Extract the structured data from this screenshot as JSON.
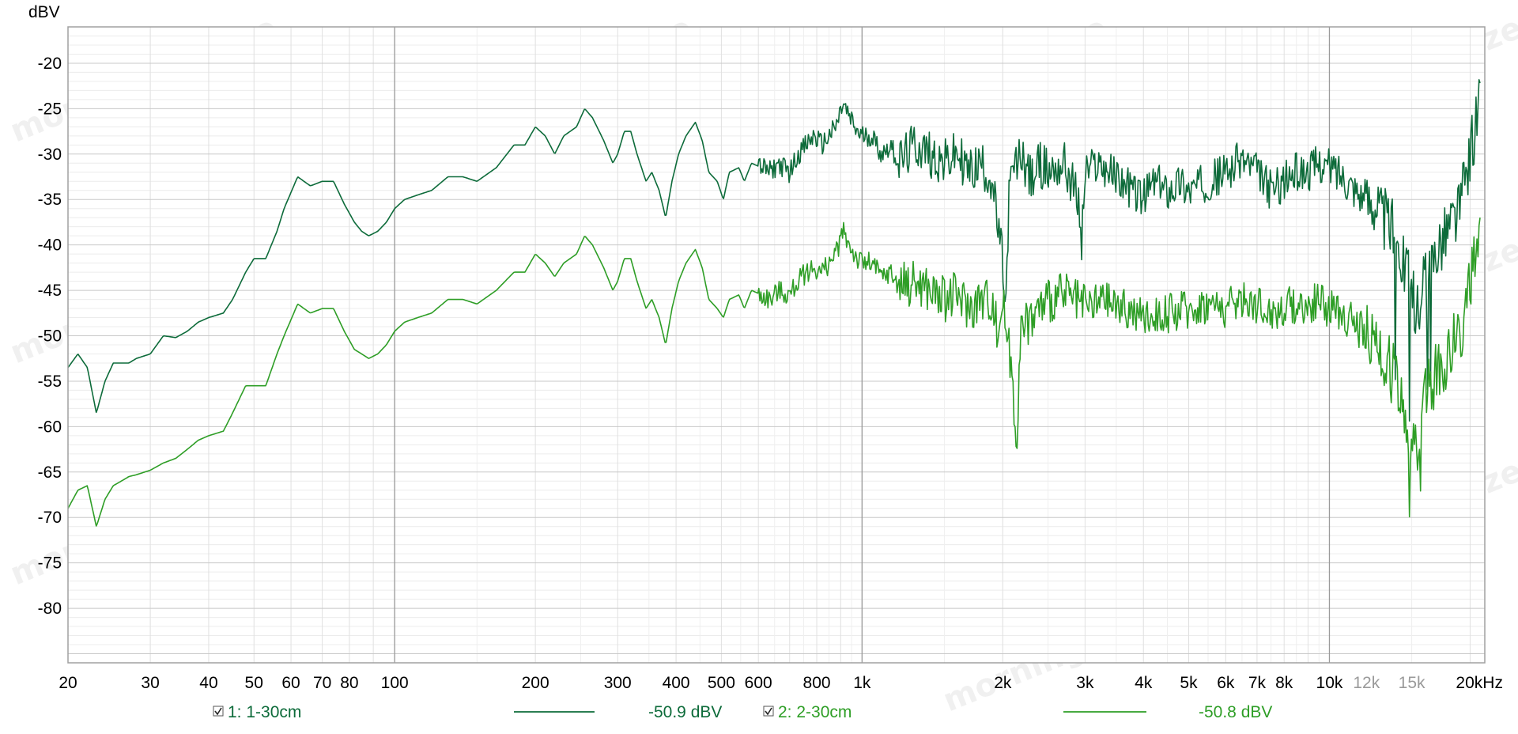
{
  "chart_data": {
    "type": "line",
    "ylabel": "dBV",
    "x_scale": "log",
    "xlim": [
      20,
      21500
    ],
    "ylim": [
      -86,
      -16
    ],
    "grid": true,
    "x_ticks": [
      {
        "value": 20,
        "label": "20"
      },
      {
        "value": 30,
        "label": "30"
      },
      {
        "value": 40,
        "label": "40"
      },
      {
        "value": 50,
        "label": "50"
      },
      {
        "value": 60,
        "label": "60"
      },
      {
        "value": 70,
        "label": "70"
      },
      {
        "value": 80,
        "label": "80"
      },
      {
        "value": 100,
        "label": "100"
      },
      {
        "value": 200,
        "label": "200"
      },
      {
        "value": 300,
        "label": "300"
      },
      {
        "value": 400,
        "label": "400"
      },
      {
        "value": 500,
        "label": "500"
      },
      {
        "value": 600,
        "label": "600"
      },
      {
        "value": 800,
        "label": "800"
      },
      {
        "value": 1000,
        "label": "1k"
      },
      {
        "value": 2000,
        "label": "2k"
      },
      {
        "value": 3000,
        "label": "3k"
      },
      {
        "value": 4000,
        "label": "4k"
      },
      {
        "value": 5000,
        "label": "5k"
      },
      {
        "value": 6000,
        "label": "6k"
      },
      {
        "value": 7000,
        "label": "7k"
      },
      {
        "value": 8000,
        "label": "8k"
      },
      {
        "value": 10000,
        "label": "10k"
      },
      {
        "value": 12000,
        "label": "12k",
        "muted": true
      },
      {
        "value": 15000,
        "label": "15k",
        "muted": true
      },
      {
        "value": 20000,
        "label": "20kHz"
      }
    ],
    "y_ticks": [
      -20,
      -25,
      -30,
      -35,
      -40,
      -45,
      -50,
      -55,
      -60,
      -65,
      -70,
      -75,
      -80
    ],
    "series": [
      {
        "name": "1: 1-30cm",
        "value": "-50.9 dBV",
        "color": "#0d6b3a",
        "checked": true,
        "points": [
          [
            20,
            -53.5
          ],
          [
            21,
            -52
          ],
          [
            22,
            -53.5
          ],
          [
            23,
            -58.5
          ],
          [
            24,
            -55
          ],
          [
            25,
            -53
          ],
          [
            26,
            -53
          ],
          [
            27,
            -53
          ],
          [
            28,
            -52.5
          ],
          [
            30,
            -52
          ],
          [
            32,
            -50
          ],
          [
            34,
            -50.2
          ],
          [
            36,
            -49.5
          ],
          [
            38,
            -48.5
          ],
          [
            40,
            -48
          ],
          [
            43,
            -47.5
          ],
          [
            45,
            -46
          ],
          [
            48,
            -43
          ],
          [
            50,
            -41.5
          ],
          [
            53,
            -41.5
          ],
          [
            56,
            -38.5
          ],
          [
            58,
            -36
          ],
          [
            62,
            -32.5
          ],
          [
            66,
            -33.5
          ],
          [
            70,
            -33
          ],
          [
            74,
            -33
          ],
          [
            78,
            -35.5
          ],
          [
            82,
            -37.5
          ],
          [
            85,
            -38.5
          ],
          [
            88,
            -39
          ],
          [
            92,
            -38.5
          ],
          [
            96,
            -37.5
          ],
          [
            100,
            -36
          ],
          [
            105,
            -35
          ],
          [
            112,
            -34.5
          ],
          [
            120,
            -34
          ],
          [
            130,
            -32.5
          ],
          [
            140,
            -32.5
          ],
          [
            150,
            -33
          ],
          [
            165,
            -31.5
          ],
          [
            180,
            -29
          ],
          [
            190,
            -29
          ],
          [
            200,
            -27
          ],
          [
            210,
            -28
          ],
          [
            220,
            -30
          ],
          [
            230,
            -28
          ],
          [
            245,
            -27
          ],
          [
            255,
            -25
          ],
          [
            265,
            -26
          ],
          [
            280,
            -28.5
          ],
          [
            293,
            -31
          ],
          [
            300,
            -30
          ],
          [
            310,
            -27.5
          ],
          [
            320,
            -27.5
          ],
          [
            330,
            -30
          ],
          [
            345,
            -33
          ],
          [
            355,
            -32
          ],
          [
            368,
            -34
          ],
          [
            380,
            -37
          ],
          [
            392,
            -33
          ],
          [
            405,
            -30
          ],
          [
            420,
            -28
          ],
          [
            440,
            -26.5
          ],
          [
            455,
            -28.5
          ],
          [
            470,
            -32
          ],
          [
            490,
            -33
          ],
          [
            505,
            -35
          ],
          [
            520,
            -32
          ],
          [
            545,
            -31.5
          ],
          [
            560,
            -33
          ],
          [
            580,
            -31
          ],
          [
            610,
            -31.5
          ],
          [
            640,
            -32
          ],
          [
            660,
            -31
          ],
          [
            700,
            -32
          ],
          [
            730,
            -30
          ],
          [
            760,
            -29
          ],
          [
            790,
            -28
          ],
          [
            820,
            -29
          ],
          [
            850,
            -28
          ],
          [
            880,
            -27
          ],
          [
            910,
            -24.5
          ],
          [
            940,
            -26
          ],
          [
            975,
            -27.5
          ],
          [
            1000,
            -28
          ],
          [
            1050,
            -28
          ],
          [
            1100,
            -30
          ],
          [
            1150,
            -29
          ],
          [
            1200,
            -31
          ],
          [
            1300,
            -29
          ],
          [
            1400,
            -30
          ],
          [
            1500,
            -31
          ],
          [
            1600,
            -30
          ],
          [
            1700,
            -32
          ],
          [
            1800,
            -31
          ],
          [
            1900,
            -33
          ],
          [
            1950,
            -38
          ],
          [
            2000,
            -42
          ],
          [
            2030,
            -48
          ],
          [
            2060,
            -35
          ],
          [
            2100,
            -32
          ],
          [
            2200,
            -30
          ],
          [
            2300,
            -33
          ],
          [
            2400,
            -31
          ],
          [
            2500,
            -32
          ],
          [
            2700,
            -31
          ],
          [
            2800,
            -33
          ],
          [
            2900,
            -35
          ],
          [
            2950,
            -40
          ],
          [
            3000,
            -32
          ],
          [
            3200,
            -31
          ],
          [
            3400,
            -32
          ],
          [
            3600,
            -33
          ],
          [
            3800,
            -34
          ],
          [
            4000,
            -35
          ],
          [
            4200,
            -33
          ],
          [
            4500,
            -34
          ],
          [
            4800,
            -33
          ],
          [
            5000,
            -34
          ],
          [
            5500,
            -33
          ],
          [
            6000,
            -32
          ],
          [
            6500,
            -30.5
          ],
          [
            7000,
            -32
          ],
          [
            7500,
            -34
          ],
          [
            8000,
            -33
          ],
          [
            8500,
            -32
          ],
          [
            9000,
            -32
          ],
          [
            9500,
            -31
          ],
          [
            10000,
            -31.5
          ],
          [
            10500,
            -32
          ],
          [
            11000,
            -33
          ],
          [
            11500,
            -34
          ],
          [
            12000,
            -35
          ],
          [
            12500,
            -35
          ],
          [
            13000,
            -37
          ],
          [
            13500,
            -38
          ],
          [
            14000,
            -39
          ],
          [
            14500,
            -42
          ],
          [
            15000,
            -46
          ],
          [
            15500,
            -47
          ],
          [
            16000,
            -44
          ],
          [
            17000,
            -40
          ],
          [
            18000,
            -38
          ],
          [
            19000,
            -36
          ],
          [
            20000,
            -30
          ],
          [
            21000,
            -24
          ]
        ]
      },
      {
        "name": "2: 2-30cm",
        "value": "-50.8 dBV",
        "color": "#2e9e26",
        "checked": true,
        "points": [
          [
            20,
            -69
          ],
          [
            21,
            -67
          ],
          [
            22,
            -66.5
          ],
          [
            23,
            -71
          ],
          [
            24,
            -68
          ],
          [
            25,
            -66.5
          ],
          [
            26,
            -66
          ],
          [
            27,
            -65.5
          ],
          [
            28,
            -65.3
          ],
          [
            30,
            -64.8
          ],
          [
            32,
            -64
          ],
          [
            34,
            -63.5
          ],
          [
            36,
            -62.5
          ],
          [
            38,
            -61.5
          ],
          [
            40,
            -61
          ],
          [
            43,
            -60.5
          ],
          [
            45,
            -58.5
          ],
          [
            48,
            -55.5
          ],
          [
            50,
            -55.5
          ],
          [
            53,
            -55.5
          ],
          [
            56,
            -52
          ],
          [
            58,
            -50
          ],
          [
            62,
            -46.5
          ],
          [
            66,
            -47.5
          ],
          [
            70,
            -47
          ],
          [
            74,
            -47
          ],
          [
            78,
            -49.5
          ],
          [
            82,
            -51.5
          ],
          [
            85,
            -52
          ],
          [
            88,
            -52.5
          ],
          [
            92,
            -52
          ],
          [
            96,
            -51
          ],
          [
            100,
            -49.5
          ],
          [
            105,
            -48.5
          ],
          [
            112,
            -48
          ],
          [
            120,
            -47.5
          ],
          [
            130,
            -46
          ],
          [
            140,
            -46
          ],
          [
            150,
            -46.5
          ],
          [
            165,
            -45
          ],
          [
            180,
            -43
          ],
          [
            190,
            -43
          ],
          [
            200,
            -41
          ],
          [
            210,
            -42
          ],
          [
            220,
            -43.5
          ],
          [
            230,
            -42
          ],
          [
            245,
            -41
          ],
          [
            255,
            -39
          ],
          [
            265,
            -40
          ],
          [
            280,
            -42.5
          ],
          [
            293,
            -45
          ],
          [
            300,
            -44
          ],
          [
            310,
            -41.5
          ],
          [
            320,
            -41.5
          ],
          [
            330,
            -44
          ],
          [
            345,
            -47
          ],
          [
            355,
            -46
          ],
          [
            368,
            -48
          ],
          [
            380,
            -51
          ],
          [
            392,
            -47
          ],
          [
            405,
            -44
          ],
          [
            420,
            -42
          ],
          [
            440,
            -40.5
          ],
          [
            455,
            -42.5
          ],
          [
            470,
            -46
          ],
          [
            490,
            -47
          ],
          [
            505,
            -48
          ],
          [
            520,
            -46
          ],
          [
            545,
            -45.5
          ],
          [
            560,
            -47
          ],
          [
            580,
            -45
          ],
          [
            610,
            -45.5
          ],
          [
            640,
            -46
          ],
          [
            660,
            -45
          ],
          [
            700,
            -45.5
          ],
          [
            730,
            -44
          ],
          [
            760,
            -43
          ],
          [
            790,
            -42.5
          ],
          [
            820,
            -43
          ],
          [
            850,
            -42
          ],
          [
            880,
            -41
          ],
          [
            910,
            -38.5
          ],
          [
            940,
            -40
          ],
          [
            975,
            -41.5
          ],
          [
            1000,
            -42
          ],
          [
            1050,
            -42
          ],
          [
            1100,
            -43.5
          ],
          [
            1150,
            -43
          ],
          [
            1200,
            -44.5
          ],
          [
            1300,
            -44
          ],
          [
            1400,
            -45
          ],
          [
            1500,
            -46
          ],
          [
            1600,
            -45.5
          ],
          [
            1700,
            -47
          ],
          [
            1800,
            -46
          ],
          [
            1900,
            -46
          ],
          [
            1950,
            -50
          ],
          [
            2000,
            -46
          ],
          [
            2100,
            -55
          ],
          [
            2140,
            -62
          ],
          [
            2180,
            -50
          ],
          [
            2300,
            -48
          ],
          [
            2500,
            -46
          ],
          [
            2700,
            -45.5
          ],
          [
            3000,
            -47
          ],
          [
            3300,
            -46
          ],
          [
            3600,
            -47
          ],
          [
            4000,
            -48
          ],
          [
            4500,
            -47.5
          ],
          [
            5000,
            -47
          ],
          [
            5500,
            -46.5
          ],
          [
            6000,
            -47
          ],
          [
            6500,
            -46
          ],
          [
            7000,
            -46.5
          ],
          [
            7500,
            -47.5
          ],
          [
            8000,
            -47
          ],
          [
            8500,
            -46.5
          ],
          [
            9000,
            -47
          ],
          [
            9500,
            -46
          ],
          [
            10000,
            -47
          ],
          [
            10500,
            -47.5
          ],
          [
            11000,
            -48
          ],
          [
            11500,
            -49
          ],
          [
            12000,
            -50
          ],
          [
            12500,
            -51
          ],
          [
            13000,
            -52
          ],
          [
            13500,
            -53
          ],
          [
            14000,
            -55
          ],
          [
            14500,
            -58
          ],
          [
            15000,
            -63
          ],
          [
            15500,
            -62
          ],
          [
            16000,
            -57
          ],
          [
            17000,
            -54
          ],
          [
            18000,
            -52
          ],
          [
            19000,
            -50
          ],
          [
            20000,
            -44
          ],
          [
            21000,
            -40
          ]
        ]
      }
    ]
  },
  "watermark": "morning sneeze"
}
